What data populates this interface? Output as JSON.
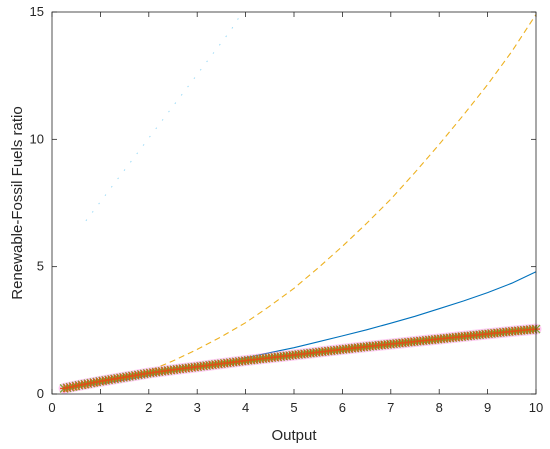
{
  "chart_data": {
    "type": "line",
    "title": "",
    "xlabel": "Output",
    "ylabel": "Renewable-Fossil Fuels ratio",
    "xlim": [
      0,
      10
    ],
    "ylim": [
      0,
      15
    ],
    "xticks": [
      0,
      1,
      2,
      3,
      4,
      5,
      6,
      7,
      8,
      9,
      10
    ],
    "yticks": [
      0,
      5,
      10,
      15
    ],
    "grid": false,
    "legend": "none",
    "series": [
      {
        "style": "dotted",
        "color": "#4DBEEE",
        "x": [
          0.7,
          0.9,
          1.1,
          1.3,
          1.5,
          1.7,
          1.9,
          2.1,
          2.3,
          2.5,
          2.7,
          2.9,
          3.1,
          3.3,
          3.5,
          3.7,
          3.9
        ],
        "y": [
          6.8,
          7.3,
          7.8,
          8.3,
          8.8,
          9.3,
          9.8,
          10.3,
          10.8,
          11.3,
          11.8,
          12.3,
          12.8,
          13.3,
          13.8,
          14.3,
          14.9
        ]
      },
      {
        "style": "dashed",
        "color": "#EDB120",
        "x": [
          0.25,
          0.5,
          1,
          1.5,
          2,
          2.5,
          3,
          3.5,
          4,
          4.5,
          5,
          5.5,
          6,
          6.5,
          7,
          7.5,
          8,
          8.5,
          9,
          9.5,
          10
        ],
        "y": [
          0.1,
          0.16,
          0.35,
          0.6,
          0.9,
          1.3,
          1.75,
          2.25,
          2.8,
          3.45,
          4.15,
          4.95,
          5.8,
          6.7,
          7.65,
          8.7,
          9.8,
          10.95,
          12.15,
          13.45,
          14.9
        ]
      },
      {
        "style": "solid",
        "color": "#0072BD",
        "x": [
          0.25,
          0.5,
          1,
          1.5,
          2,
          2.5,
          3,
          3.5,
          4,
          4.5,
          5,
          5.5,
          6,
          6.5,
          7,
          7.5,
          8,
          8.5,
          9,
          9.5,
          10
        ],
        "y": [
          0.15,
          0.25,
          0.4,
          0.55,
          0.72,
          0.88,
          1.05,
          1.22,
          1.42,
          1.62,
          1.82,
          2.05,
          2.28,
          2.52,
          2.78,
          3.05,
          3.35,
          3.65,
          3.98,
          4.35,
          4.8
        ]
      },
      {
        "style": "magenta-band",
        "color": "#FF66DD",
        "x": [
          0.25,
          0.5,
          1,
          1.5,
          2,
          2.5,
          3,
          3.5,
          4,
          4.5,
          5,
          5.5,
          6,
          6.5,
          7,
          7.5,
          8,
          8.5,
          9,
          9.5,
          10
        ],
        "y": [
          0.22,
          0.32,
          0.5,
          0.66,
          0.82,
          0.95,
          1.07,
          1.19,
          1.31,
          1.42,
          1.53,
          1.64,
          1.75,
          1.86,
          1.96,
          2.06,
          2.16,
          2.26,
          2.36,
          2.46,
          2.55
        ]
      },
      {
        "style": "markers",
        "color": "#D95319",
        "marker_color": "#77AC30",
        "x": [
          0.25,
          0.5,
          1,
          1.5,
          2,
          2.5,
          3,
          3.5,
          4,
          4.5,
          5,
          5.5,
          6,
          6.5,
          7,
          7.5,
          8,
          8.5,
          9,
          9.5,
          10
        ],
        "y": [
          0.22,
          0.32,
          0.5,
          0.66,
          0.82,
          0.95,
          1.07,
          1.19,
          1.31,
          1.42,
          1.53,
          1.64,
          1.75,
          1.86,
          1.96,
          2.06,
          2.16,
          2.26,
          2.36,
          2.46,
          2.55
        ]
      }
    ]
  }
}
